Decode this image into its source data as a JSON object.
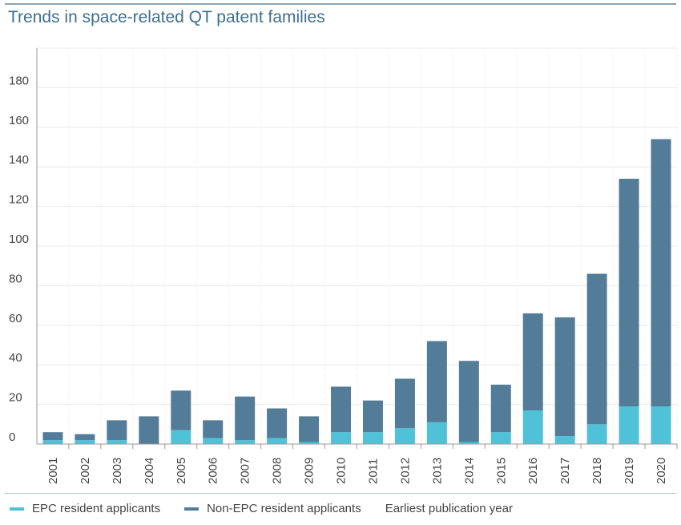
{
  "title": "Trends in space-related QT patent families",
  "legend": {
    "epc": "EPC resident applicants",
    "non_epc": "Non-EPC resident applicants",
    "xaxis": "Earliest publication year"
  },
  "colors": {
    "epc": "#4fc2d8",
    "non_epc": "#527c97"
  },
  "chart_data": {
    "type": "bar",
    "stacked": true,
    "title": "Trends in space-related QT patent families",
    "xlabel": "Earliest publication year",
    "ylabel": "",
    "ylim": [
      0,
      200
    ],
    "yticks": [
      0,
      20,
      40,
      60,
      80,
      100,
      120,
      140,
      160,
      180
    ],
    "categories": [
      "2001",
      "2002",
      "2003",
      "2004",
      "2005",
      "2006",
      "2007",
      "2008",
      "2009",
      "2010",
      "2011",
      "2012",
      "2013",
      "2014",
      "2015",
      "2016",
      "2017",
      "2018",
      "2019",
      "2020"
    ],
    "series": [
      {
        "name": "EPC resident applicants",
        "values": [
          2,
          2,
          2,
          0,
          7,
          3,
          2,
          3,
          1,
          6,
          6,
          8,
          11,
          1,
          6,
          17,
          4,
          10,
          19,
          19
        ]
      },
      {
        "name": "Non-EPC resident applicants",
        "values": [
          4,
          3,
          10,
          14,
          20,
          9,
          22,
          15,
          13,
          23,
          16,
          25,
          41,
          41,
          24,
          49,
          60,
          76,
          115,
          135
        ]
      }
    ],
    "grid": true,
    "legend_position": "bottom"
  }
}
